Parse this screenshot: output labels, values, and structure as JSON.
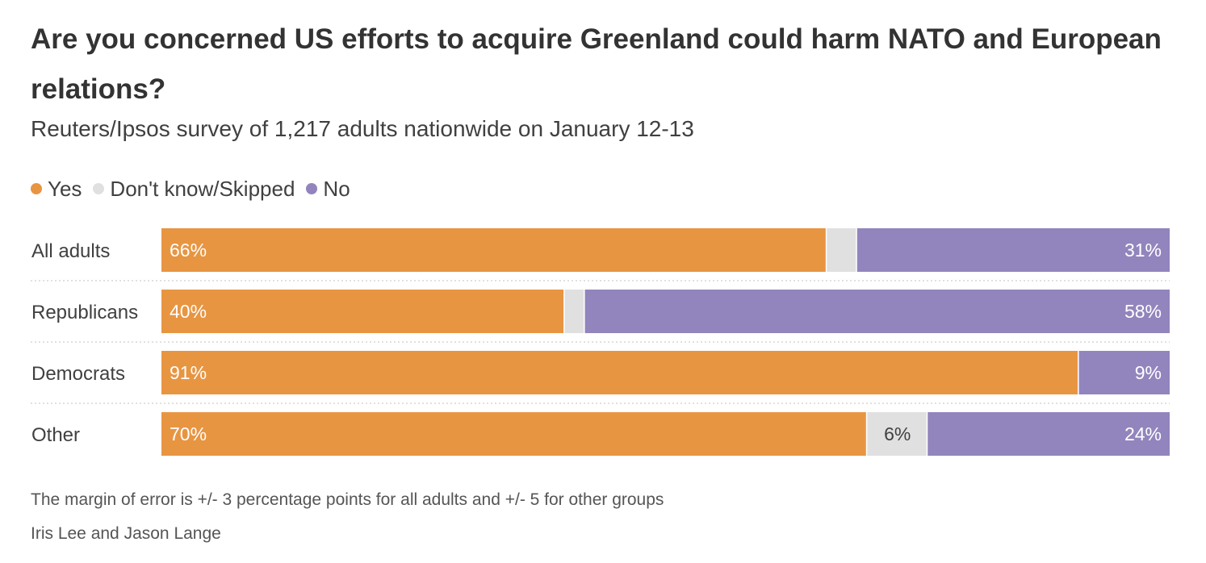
{
  "colors": {
    "yes": "#E89542",
    "dont_know": "#E0E0E0",
    "no": "#9285BD",
    "separator": "#D6D6D6"
  },
  "legend": [
    {
      "key": "yes",
      "label": "Yes"
    },
    {
      "key": "dont_know",
      "label": "Don't know/Skipped"
    },
    {
      "key": "no",
      "label": "No"
    }
  ],
  "footer": {
    "note": "The margin of error is +/- 3 percentage points for all adults and +/- 5 for other groups",
    "credit": "Iris Lee and Jason Lange"
  },
  "chart_data": {
    "type": "bar",
    "orientation": "horizontal",
    "stacked": true,
    "title": "Are you concerned US efforts to acquire Greenland could harm NATO and European relations?",
    "subtitle": "Reuters/Ipsos survey of 1,217 adults nationwide on January 12-13",
    "legend_position": "top-left",
    "xlim": [
      0,
      100
    ],
    "categories": [
      "All adults",
      "Republicans",
      "Democrats",
      "Other"
    ],
    "series": [
      {
        "key": "yes",
        "name": "Yes",
        "values": [
          66,
          40,
          91,
          70
        ],
        "labels": [
          "66%",
          "40%",
          "91%",
          "70%"
        ]
      },
      {
        "key": "dont_know",
        "name": "Don't know/Skipped",
        "values": [
          3,
          2,
          0,
          6
        ],
        "labels": [
          "",
          "",
          "",
          "6%"
        ]
      },
      {
        "key": "no",
        "name": "No",
        "values": [
          31,
          58,
          9,
          24
        ],
        "labels": [
          "31%",
          "58%",
          "9%",
          "24%"
        ]
      }
    ]
  }
}
